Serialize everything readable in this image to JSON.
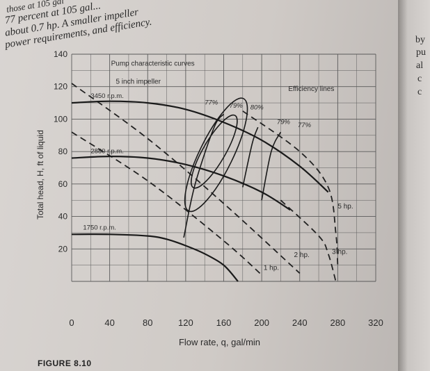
{
  "page": {
    "intro_lines": [
      "those at 105 gal",
      "77 percent at 105 gal...",
      "about 0.7 hp. A smaller impeller",
      "power requirements, and efficiency."
    ],
    "side_fragments": [
      "by",
      "pu",
      "al",
      "c",
      "c"
    ],
    "figure_caption": "FIGURE 8.10"
  },
  "chart_data": {
    "type": "line",
    "xlabel": "Flow rate, q, gal/min",
    "ylabel": "Total head, H, ft of liquid",
    "xlim": [
      0,
      320
    ],
    "ylim": [
      0,
      140
    ],
    "x_ticks": [
      "0",
      "40",
      "80",
      "120",
      "160",
      "200",
      "240",
      "280",
      "320"
    ],
    "y_ticks": [
      "20",
      "40",
      "60",
      "80",
      "100",
      "120",
      "140"
    ],
    "grid": true,
    "annotations": {
      "pump_curves": "Pump characteristic curves",
      "impeller": "5 inch impeller",
      "efficiency_lines": "Efficiency lines"
    },
    "head_curves": [
      {
        "name": "3450 r.p.m.",
        "points": [
          [
            0,
            110
          ],
          [
            40,
            111
          ],
          [
            80,
            110
          ],
          [
            120,
            106
          ],
          [
            160,
            98
          ],
          [
            200,
            87
          ],
          [
            240,
            71
          ],
          [
            270,
            55
          ]
        ]
      },
      {
        "name": "2880 r.p.m.",
        "points": [
          [
            0,
            76
          ],
          [
            40,
            77
          ],
          [
            80,
            76
          ],
          [
            120,
            72
          ],
          [
            160,
            65
          ],
          [
            200,
            55
          ],
          [
            230,
            44
          ]
        ]
      },
      {
        "name": "1750 r.p.m.",
        "points": [
          [
            0,
            29
          ],
          [
            40,
            29
          ],
          [
            80,
            28
          ],
          [
            100,
            26
          ],
          [
            120,
            22
          ],
          [
            140,
            17
          ],
          [
            160,
            10
          ],
          [
            175,
            0
          ]
        ]
      }
    ],
    "efficiency_labels": [
      "77%",
      "79%",
      "80%",
      "79%",
      "77%"
    ],
    "power_lines": [
      {
        "name": "1 hp.",
        "points": [
          [
            0,
            92
          ],
          [
            80,
            62
          ],
          [
            160,
            25
          ],
          [
            200,
            4
          ]
        ]
      },
      {
        "name": "2 hp.",
        "points": [
          [
            0,
            122
          ],
          [
            80,
            88
          ],
          [
            160,
            48
          ],
          [
            240,
            5
          ]
        ]
      },
      {
        "name": "3 hp.",
        "points": [
          [
            220,
            50
          ],
          [
            260,
            28
          ],
          [
            270,
            17
          ],
          [
            278,
            0
          ]
        ]
      },
      {
        "name": "5 hp.",
        "points": [
          [
            180,
            105
          ],
          [
            240,
            80
          ],
          [
            270,
            58
          ],
          [
            278,
            30
          ],
          [
            280,
            10
          ]
        ]
      }
    ]
  }
}
